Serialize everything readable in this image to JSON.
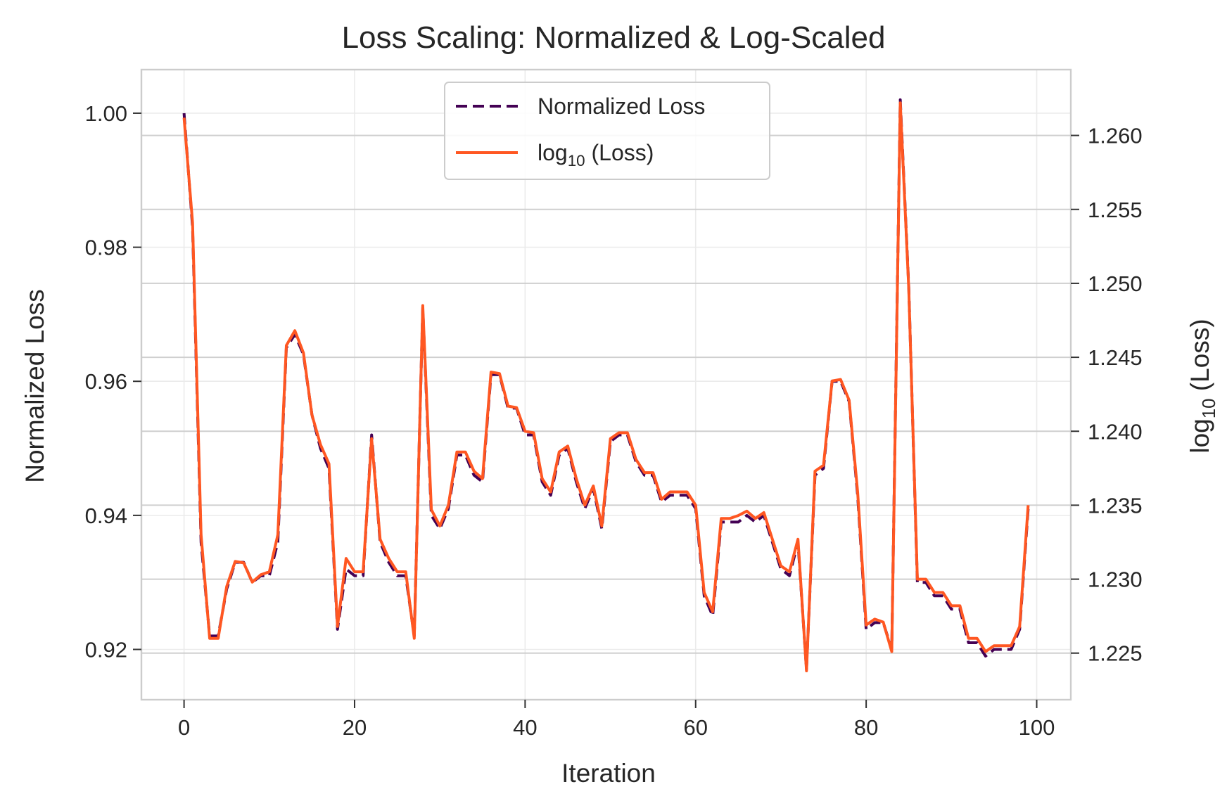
{
  "chart_data": {
    "type": "line",
    "title": "Loss Scaling: Normalized & Log-Scaled",
    "xlabel": "Iteration",
    "ylabel": "Normalized Loss",
    "y2label": {
      "base": "log",
      "subscript": "10",
      "suffix": " (Loss)"
    },
    "xlim": [
      -5,
      104
    ],
    "ylim": [
      0.9125,
      1.0065
    ],
    "y2lim": [
      1.22185,
      1.26445
    ],
    "xticks": [
      0,
      20,
      40,
      60,
      80,
      100
    ],
    "xtick_labels": [
      "0",
      "20",
      "40",
      "60",
      "80",
      "100"
    ],
    "yticks": [
      0.92,
      0.94,
      0.96,
      0.98,
      1.0
    ],
    "ytick_labels": [
      "0.92",
      "0.94",
      "0.96",
      "0.98",
      "1.00"
    ],
    "y2ticks": [
      1.225,
      1.23,
      1.235,
      1.24,
      1.245,
      1.25,
      1.255,
      1.26
    ],
    "y2tick_labels": [
      "1.225",
      "1.230",
      "1.235",
      "1.240",
      "1.245",
      "1.250",
      "1.255",
      "1.260"
    ],
    "grid": true,
    "legend_position": "top-center",
    "x": [
      0,
      1,
      2,
      3,
      4,
      5,
      6,
      7,
      8,
      9,
      10,
      11,
      12,
      13,
      14,
      15,
      16,
      17,
      18,
      19,
      20,
      21,
      22,
      23,
      24,
      25,
      26,
      27,
      28,
      29,
      30,
      31,
      32,
      33,
      34,
      35,
      36,
      37,
      38,
      39,
      40,
      41,
      42,
      43,
      44,
      45,
      46,
      47,
      48,
      49,
      50,
      51,
      52,
      53,
      54,
      55,
      56,
      57,
      58,
      59,
      60,
      61,
      62,
      63,
      64,
      65,
      66,
      67,
      68,
      69,
      70,
      71,
      72,
      73,
      74,
      75,
      76,
      77,
      78,
      79,
      80,
      81,
      82,
      83,
      84,
      85,
      86,
      87,
      88,
      89,
      90,
      91,
      92,
      93,
      94,
      95,
      96,
      97,
      98,
      99
    ],
    "series": [
      {
        "name": "Normalized Loss",
        "axis": "left",
        "color": "#440154",
        "style": "dashed",
        "values": [
          1.0,
          0.983,
          0.936,
          0.922,
          0.922,
          0.929,
          0.933,
          0.933,
          0.93,
          0.931,
          0.931,
          0.936,
          0.965,
          0.967,
          0.964,
          0.955,
          0.95,
          0.947,
          0.923,
          0.932,
          0.931,
          0.931,
          0.952,
          0.936,
          0.933,
          0.931,
          0.931,
          0.922,
          0.971,
          0.94,
          0.938,
          0.941,
          0.949,
          0.949,
          0.946,
          0.945,
          0.961,
          0.961,
          0.956,
          0.956,
          0.952,
          0.952,
          0.945,
          0.943,
          0.949,
          0.95,
          0.945,
          0.941,
          0.944,
          0.938,
          0.951,
          0.952,
          0.952,
          0.948,
          0.946,
          0.946,
          0.942,
          0.943,
          0.943,
          0.943,
          0.941,
          0.928,
          0.925,
          0.939,
          0.939,
          0.939,
          0.94,
          0.939,
          0.94,
          0.936,
          0.932,
          0.931,
          0.936,
          0.917,
          0.946,
          0.947,
          0.96,
          0.96,
          0.957,
          0.943,
          0.923,
          0.924,
          0.924,
          0.92,
          1.002,
          0.974,
          0.93,
          0.93,
          0.928,
          0.928,
          0.926,
          0.926,
          0.921,
          0.921,
          0.919,
          0.92,
          0.92,
          0.92,
          0.923,
          0.941
        ]
      },
      {
        "name": "log10(Loss)",
        "axis": "right",
        "color": "#FF5722",
        "style": "solid",
        "values": [
          1.2612,
          1.2541,
          1.233,
          1.226,
          1.226,
          1.2295,
          1.2312,
          1.2311,
          1.2298,
          1.2303,
          1.2305,
          1.233,
          1.2458,
          1.2468,
          1.2453,
          1.2411,
          1.2391,
          1.2378,
          1.2268,
          1.2314,
          1.2305,
          1.2305,
          1.2395,
          1.2327,
          1.2314,
          1.2305,
          1.2305,
          1.226,
          1.2485,
          1.2347,
          1.2336,
          1.235,
          1.2386,
          1.2386,
          1.2373,
          1.2368,
          1.244,
          1.2439,
          1.2417,
          1.2416,
          1.24,
          1.2399,
          1.2368,
          1.2359,
          1.2386,
          1.239,
          1.2368,
          1.235,
          1.2363,
          1.2336,
          1.2395,
          1.2399,
          1.2399,
          1.2381,
          1.2372,
          1.2372,
          1.2354,
          1.2359,
          1.2359,
          1.2359,
          1.235,
          1.2291,
          1.2278,
          1.2341,
          1.2341,
          1.2343,
          1.2346,
          1.2341,
          1.2345,
          1.2327,
          1.2309,
          1.2305,
          1.2327,
          1.2238,
          1.2373,
          1.2377,
          1.2434,
          1.2435,
          1.2421,
          1.2359,
          1.2269,
          1.2273,
          1.2271,
          1.2251,
          1.2622,
          1.2496,
          1.23,
          1.23,
          1.2291,
          1.2291,
          1.2282,
          1.2282,
          1.226,
          1.226,
          1.2251,
          1.2255,
          1.2255,
          1.2255,
          1.2268,
          1.235
        ]
      }
    ]
  }
}
